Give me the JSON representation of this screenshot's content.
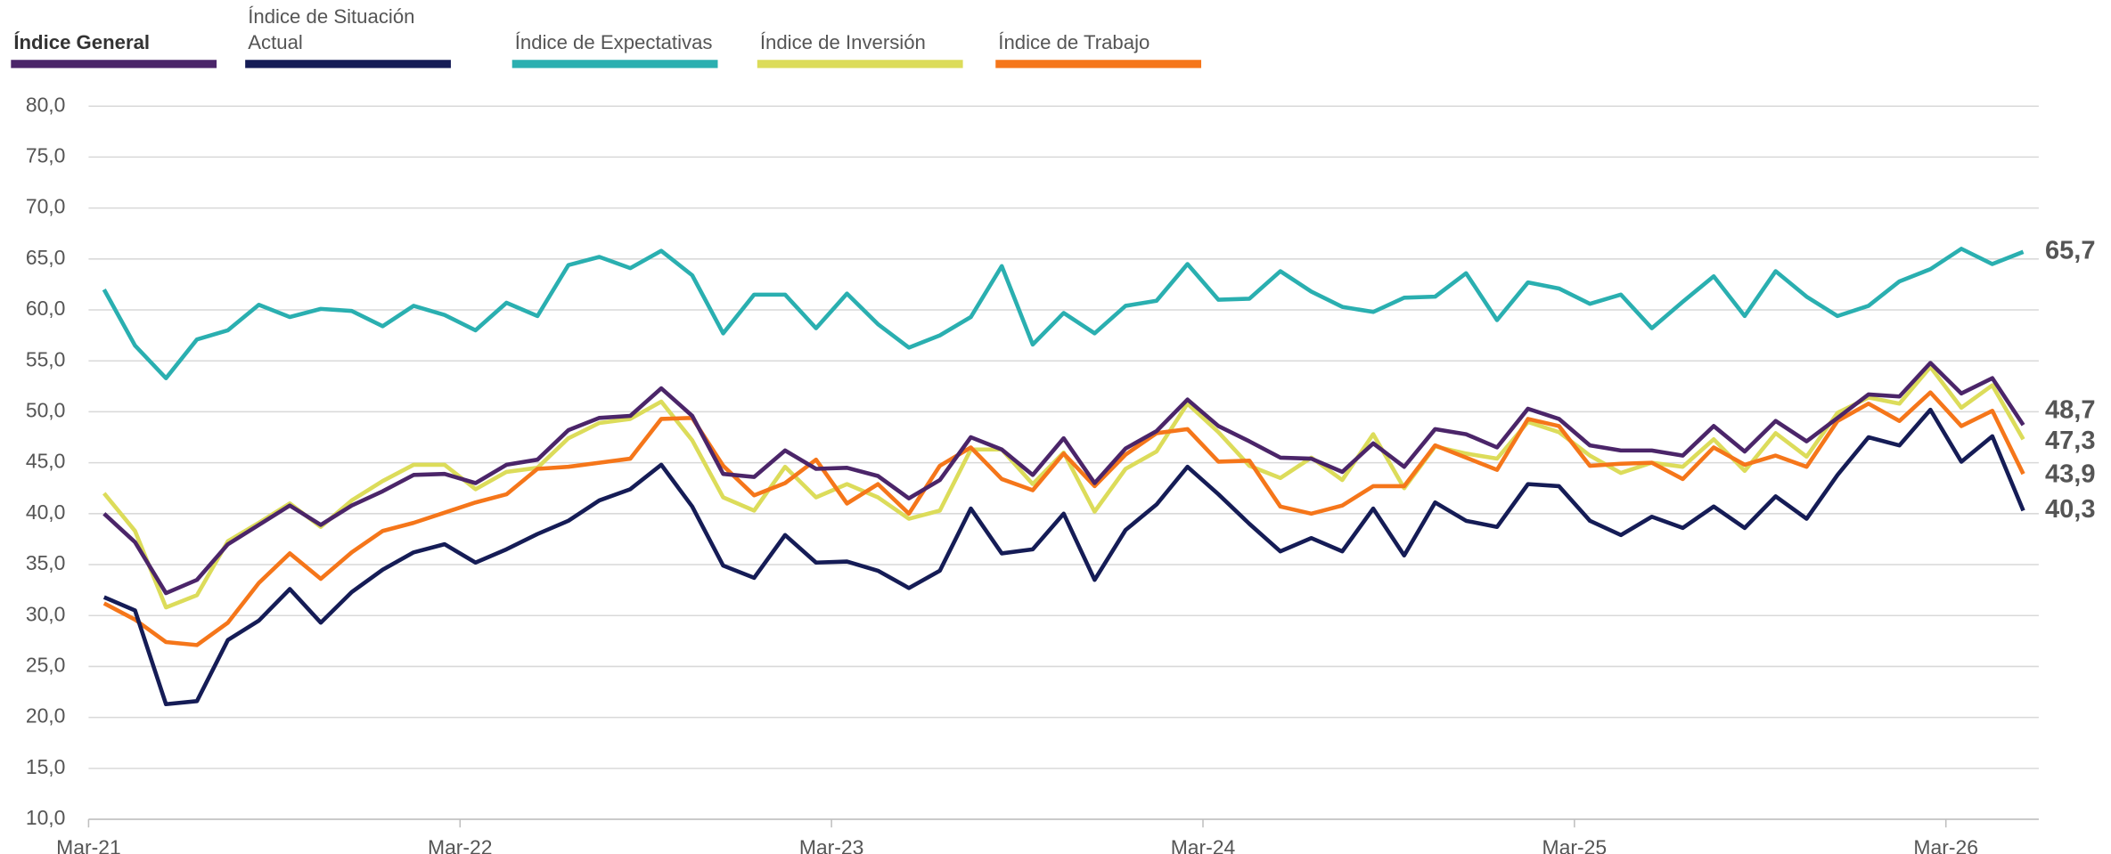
{
  "chart_data": {
    "type": "line",
    "xlim": [
      0,
      63
    ],
    "xticks": [
      {
        "value": 0,
        "label": "Mar-21"
      },
      {
        "value": 12,
        "label": "Mar-22"
      },
      {
        "value": 24,
        "label": "Mar-23"
      },
      {
        "value": 36,
        "label": "Mar-24"
      },
      {
        "value": 48,
        "label": "Mar-25"
      },
      {
        "value": 60,
        "label": "Mar-26"
      }
    ],
    "ylim": [
      10,
      80
    ],
    "yticks": [
      {
        "value": 10,
        "label": "10,0"
      },
      {
        "value": 15,
        "label": "15,0"
      },
      {
        "value": 20,
        "label": "20,0"
      },
      {
        "value": 25,
        "label": "25,0"
      },
      {
        "value": 30,
        "label": "30,0"
      },
      {
        "value": 35,
        "label": "35,0"
      },
      {
        "value": 40,
        "label": "40,0"
      },
      {
        "value": 45,
        "label": "45,0"
      },
      {
        "value": 50,
        "label": "50,0"
      },
      {
        "value": 55,
        "label": "55,0"
      },
      {
        "value": 60,
        "label": "60,0"
      },
      {
        "value": 65,
        "label": "65,0"
      },
      {
        "value": 70,
        "label": "70,0"
      },
      {
        "value": 75,
        "label": "75,0"
      },
      {
        "value": 80,
        "label": "80,0"
      }
    ],
    "grid": true,
    "legend": "top",
    "x": [
      0.5,
      1.5,
      2.5,
      3.5,
      4.5,
      5.5,
      6.5,
      7.5,
      8.5,
      9.5,
      10.5,
      11.5,
      12.5,
      13.5,
      14.5,
      15.5,
      16.5,
      17.5,
      18.5,
      19.5,
      20.5,
      21.5,
      22.5,
      23.5,
      24.5,
      25.5,
      26.5,
      27.5,
      28.5,
      29.5,
      30.5,
      31.5,
      32.5,
      33.5,
      34.5,
      35.5,
      36.5,
      37.5,
      38.5,
      39.5,
      40.5,
      41.5,
      42.5,
      43.5,
      44.5,
      45.5,
      46.5,
      47.5,
      48.5,
      49.5,
      50.5,
      51.5,
      52.5,
      53.5,
      54.5,
      55.5,
      56.5,
      57.5,
      58.5,
      59.5,
      60.5,
      61.5,
      62.5
    ],
    "series": [
      {
        "name": "Índice General",
        "color": "#4b2569",
        "values": [
          40.0,
          37.2,
          32.2,
          33.5,
          37.0,
          38.9,
          40.8,
          38.9,
          40.8,
          42.2,
          43.8,
          43.9,
          43.0,
          44.8,
          45.3,
          48.2,
          49.4,
          49.6,
          52.3,
          49.6,
          43.9,
          43.6,
          46.2,
          44.4,
          44.5,
          43.7,
          41.5,
          43.3,
          47.5,
          46.3,
          43.8,
          47.4,
          43.0,
          46.4,
          48.1,
          51.2,
          48.6,
          47.1,
          45.5,
          45.4,
          44.1,
          46.9,
          44.6,
          48.3,
          47.8,
          46.5,
          50.3,
          49.3,
          46.7,
          46.2,
          46.2,
          45.7,
          48.6,
          46.1,
          49.1,
          47.1,
          49.4,
          51.7,
          51.5,
          54.8,
          51.8,
          53.3,
          48.7
        ],
        "value_labels": [
          null,
          null,
          null,
          null,
          null,
          null,
          null,
          null,
          null,
          null,
          null,
          null,
          null,
          null,
          null,
          null,
          null,
          null,
          null,
          null,
          null,
          null,
          null,
          null,
          null,
          null,
          null,
          null,
          null,
          null,
          null,
          null,
          null,
          null,
          null,
          null,
          null,
          null,
          null,
          null,
          null,
          null,
          null,
          null,
          null,
          null,
          null,
          null,
          null,
          null,
          null,
          null,
          null,
          null,
          null,
          null,
          null,
          null,
          null,
          null,
          null,
          null,
          "48,7"
        ]
      },
      {
        "name": "Índice de Situación Actual",
        "color": "#151c56",
        "values": [
          31.8,
          30.5,
          21.3,
          21.6,
          27.6,
          29.5,
          32.6,
          29.3,
          32.3,
          34.5,
          36.2,
          37.0,
          35.2,
          36.5,
          38.0,
          39.3,
          41.3,
          42.4,
          44.8,
          40.7,
          34.9,
          33.7,
          37.9,
          35.2,
          35.3,
          34.4,
          32.7,
          34.4,
          40.5,
          36.1,
          36.5,
          40.0,
          33.5,
          38.4,
          40.9,
          44.6,
          41.9,
          39.0,
          36.3,
          37.6,
          36.3,
          40.5,
          35.9,
          41.1,
          39.3,
          38.7,
          42.9,
          42.7,
          39.3,
          37.9,
          39.7,
          38.6,
          40.7,
          38.6,
          41.7,
          39.5,
          43.8,
          47.5,
          46.7,
          50.2,
          45.1,
          47.6,
          40.3
        ],
        "value_labels": [
          null,
          null,
          null,
          null,
          null,
          null,
          null,
          null,
          null,
          null,
          null,
          null,
          null,
          null,
          null,
          null,
          null,
          null,
          null,
          null,
          null,
          null,
          null,
          null,
          null,
          null,
          null,
          null,
          null,
          null,
          null,
          null,
          null,
          null,
          null,
          null,
          null,
          null,
          null,
          null,
          null,
          null,
          null,
          null,
          null,
          null,
          null,
          null,
          null,
          null,
          null,
          null,
          null,
          null,
          null,
          null,
          null,
          null,
          null,
          null,
          null,
          null,
          "40,3"
        ]
      },
      {
        "name": "Índice de Expectativas",
        "color": "#2aafb0",
        "values": [
          62.0,
          56.5,
          53.3,
          57.1,
          58.0,
          60.5,
          59.3,
          60.1,
          59.9,
          58.4,
          60.4,
          59.5,
          58.0,
          60.7,
          59.4,
          64.4,
          65.2,
          64.1,
          65.8,
          63.4,
          57.7,
          61.5,
          61.5,
          58.2,
          61.6,
          58.6,
          56.3,
          57.5,
          59.3,
          64.3,
          56.6,
          59.7,
          57.7,
          60.4,
          60.9,
          64.5,
          61.0,
          61.1,
          63.8,
          61.8,
          60.3,
          59.8,
          61.2,
          61.3,
          63.6,
          59.0,
          62.7,
          62.1,
          60.6,
          61.5,
          58.2,
          60.8,
          63.3,
          59.4,
          63.8,
          61.3,
          59.4,
          60.4,
          62.8,
          64.0,
          66.0,
          64.5,
          65.7
        ],
        "value_labels": [
          null,
          null,
          null,
          null,
          null,
          null,
          null,
          null,
          null,
          null,
          null,
          null,
          null,
          null,
          null,
          null,
          null,
          null,
          null,
          null,
          null,
          null,
          null,
          null,
          null,
          null,
          null,
          null,
          null,
          null,
          null,
          null,
          null,
          null,
          null,
          null,
          null,
          null,
          null,
          null,
          null,
          null,
          null,
          null,
          null,
          null,
          null,
          null,
          null,
          null,
          null,
          null,
          null,
          null,
          null,
          null,
          null,
          null,
          null,
          null,
          null,
          null,
          "65,7"
        ]
      },
      {
        "name": "Índice de Inversión",
        "color": "#dcdc5a",
        "values": [
          42.0,
          38.3,
          30.8,
          32.0,
          37.3,
          39.1,
          41.0,
          38.7,
          41.3,
          43.2,
          44.8,
          44.8,
          42.4,
          44.1,
          44.5,
          47.4,
          48.9,
          49.3,
          51.0,
          47.2,
          41.6,
          40.3,
          44.6,
          41.6,
          42.9,
          41.6,
          39.5,
          40.3,
          46.3,
          46.3,
          42.9,
          46.0,
          40.2,
          44.4,
          46.1,
          50.8,
          48.0,
          44.7,
          43.5,
          45.5,
          43.3,
          47.8,
          42.5,
          46.6,
          45.9,
          45.4,
          49.0,
          48.0,
          45.7,
          44.0,
          45.0,
          44.6,
          47.3,
          44.2,
          47.9,
          45.6,
          49.9,
          51.4,
          50.8,
          54.4,
          50.4,
          52.6,
          47.3
        ],
        "value_labels": [
          null,
          null,
          null,
          null,
          null,
          null,
          null,
          null,
          null,
          null,
          null,
          null,
          null,
          null,
          null,
          null,
          null,
          null,
          null,
          null,
          null,
          null,
          null,
          null,
          null,
          null,
          null,
          null,
          null,
          null,
          null,
          null,
          null,
          null,
          null,
          null,
          null,
          null,
          null,
          null,
          null,
          null,
          null,
          null,
          null,
          null,
          null,
          null,
          null,
          null,
          null,
          null,
          null,
          null,
          null,
          null,
          null,
          null,
          null,
          null,
          null,
          null,
          "47,3"
        ]
      },
      {
        "name": "Índice de Trabajo",
        "color": "#f5761a",
        "values": [
          31.2,
          29.6,
          27.4,
          27.1,
          29.3,
          33.2,
          36.1,
          33.6,
          36.2,
          38.3,
          39.1,
          40.1,
          41.1,
          41.9,
          44.4,
          44.6,
          45.0,
          45.4,
          49.3,
          49.4,
          44.7,
          41.8,
          43.0,
          45.3,
          41.0,
          42.9,
          40.0,
          44.7,
          46.5,
          43.4,
          42.3,
          45.9,
          42.7,
          45.8,
          47.9,
          48.3,
          45.1,
          45.2,
          40.7,
          40.0,
          40.8,
          42.7,
          42.7,
          46.7,
          45.5,
          44.3,
          49.3,
          48.6,
          44.7,
          44.9,
          45.0,
          43.4,
          46.5,
          44.8,
          45.7,
          44.6,
          49.1,
          50.8,
          49.1,
          51.9,
          48.6,
          50.1,
          43.9
        ],
        "value_labels": [
          null,
          null,
          null,
          null,
          null,
          null,
          null,
          null,
          null,
          null,
          null,
          null,
          null,
          null,
          null,
          null,
          null,
          null,
          null,
          null,
          null,
          null,
          null,
          null,
          null,
          null,
          null,
          null,
          null,
          null,
          null,
          null,
          null,
          null,
          null,
          null,
          null,
          null,
          null,
          null,
          null,
          null,
          null,
          null,
          null,
          null,
          null,
          null,
          null,
          null,
          null,
          null,
          null,
          null,
          null,
          null,
          null,
          null,
          null,
          null,
          null,
          null,
          "43,9"
        ]
      }
    ]
  }
}
